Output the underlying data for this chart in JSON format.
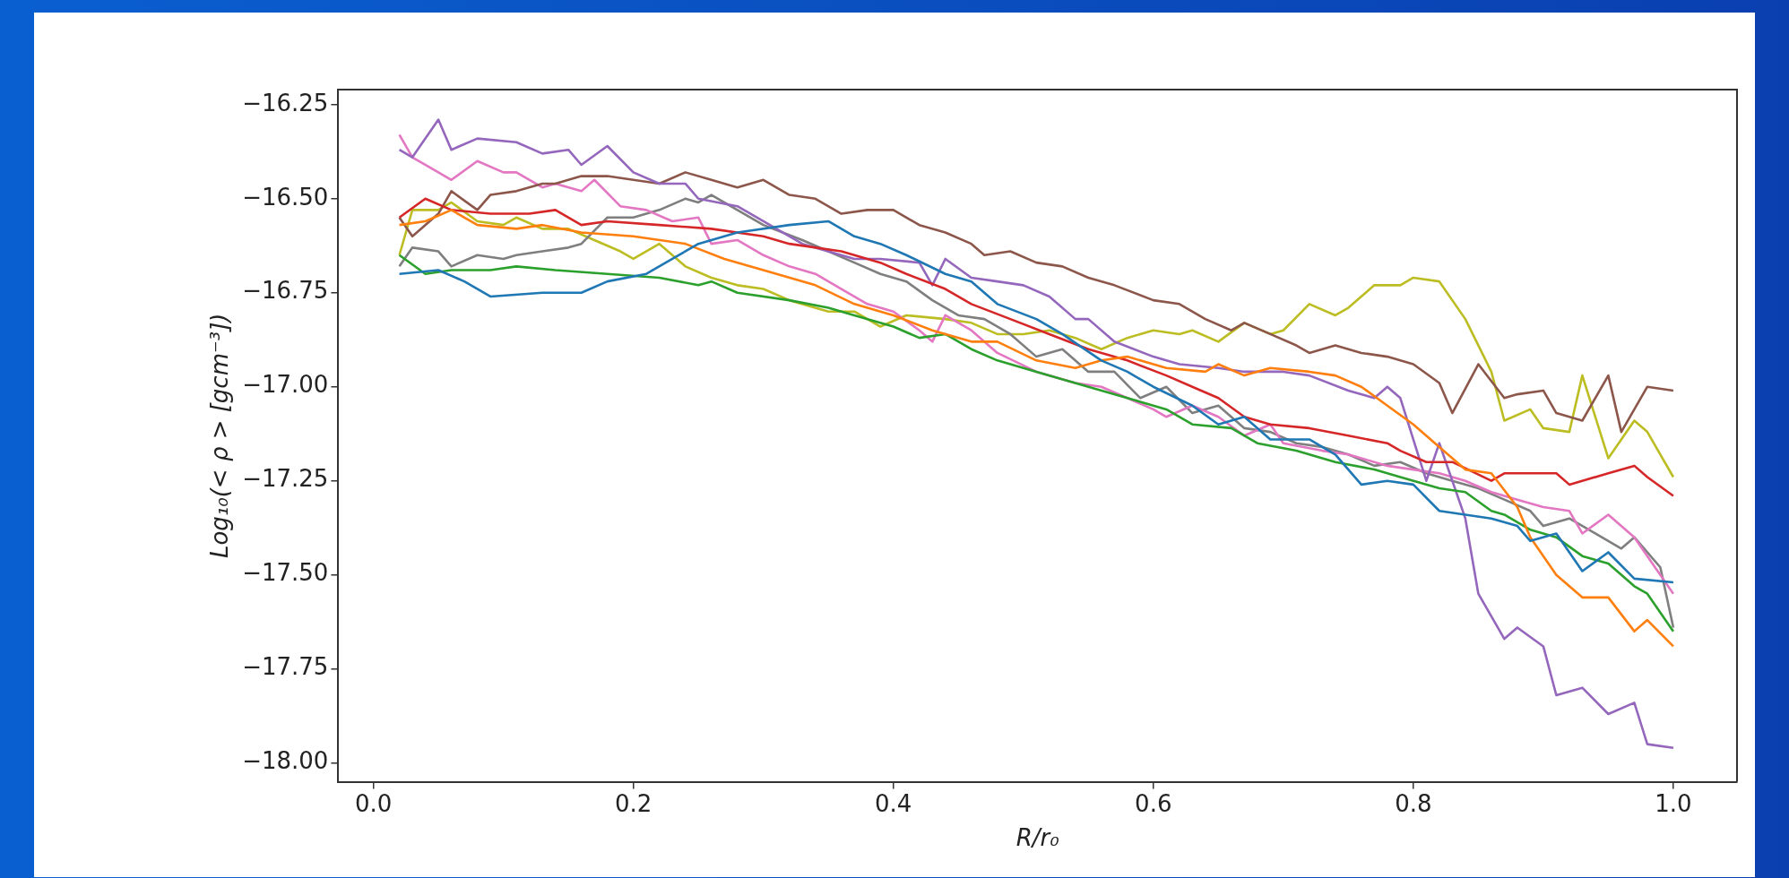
{
  "chart_data": {
    "type": "line",
    "xlabel": "R/r₀",
    "ylabel": "Log₁₀(< ρ > [gcm⁻³])",
    "xlim": [
      -0.027,
      1.049
    ],
    "ylim": [
      -18.05,
      -16.21
    ],
    "xticks": [
      {
        "value": 0,
        "label": "0.0"
      },
      {
        "value": 0.2,
        "label": "0.2"
      },
      {
        "value": 0.4,
        "label": "0.4"
      },
      {
        "value": 0.6,
        "label": "0.6"
      },
      {
        "value": 0.8,
        "label": "0.8"
      },
      {
        "value": 1,
        "label": "1.0"
      }
    ],
    "yticks": [
      {
        "value": -16.25,
        "label": "−16.25"
      },
      {
        "value": -16.5,
        "label": "−16.50"
      },
      {
        "value": -16.75,
        "label": "−16.75"
      },
      {
        "value": -17,
        "label": "−17.00"
      },
      {
        "value": -17.25,
        "label": "−17.25"
      },
      {
        "value": -17.5,
        "label": "−17.50"
      },
      {
        "value": -17.75,
        "label": "−17.75"
      },
      {
        "value": -18,
        "label": "−18.00"
      }
    ],
    "grid": false,
    "legend": false,
    "marker": "none",
    "line_style": "solid",
    "series": [
      {
        "color": "#1f77b4",
        "x": [
          0.02,
          0.05,
          0.07,
          0.09,
          0.13,
          0.16,
          0.18,
          0.21,
          0.23,
          0.25,
          0.28,
          0.32,
          0.35,
          0.37,
          0.39,
          0.41,
          0.44,
          0.46,
          0.48,
          0.51,
          0.53,
          0.56,
          0.58,
          0.6,
          0.63,
          0.65,
          0.67,
          0.69,
          0.72,
          0.74,
          0.76,
          0.78,
          0.8,
          0.82,
          0.84,
          0.86,
          0.88,
          0.89,
          0.91,
          0.93,
          0.95,
          0.97,
          1.0
        ],
        "values": [
          -16.7,
          -16.69,
          -16.72,
          -16.76,
          -16.75,
          -16.75,
          -16.72,
          -16.7,
          -16.66,
          -16.62,
          -16.59,
          -16.57,
          -16.56,
          -16.6,
          -16.62,
          -16.65,
          -16.7,
          -16.72,
          -16.78,
          -16.82,
          -16.86,
          -16.93,
          -16.96,
          -17.0,
          -17.05,
          -17.1,
          -17.08,
          -17.14,
          -17.14,
          -17.18,
          -17.26,
          -17.25,
          -17.26,
          -17.33,
          -17.34,
          -17.35,
          -17.37,
          -17.41,
          -17.39,
          -17.49,
          -17.44,
          -17.51,
          -17.52
        ]
      },
      {
        "color": "#ff7f0e",
        "x": [
          0.02,
          0.04,
          0.06,
          0.08,
          0.11,
          0.13,
          0.16,
          0.2,
          0.24,
          0.27,
          0.3,
          0.34,
          0.37,
          0.4,
          0.43,
          0.46,
          0.48,
          0.51,
          0.54,
          0.56,
          0.58,
          0.61,
          0.64,
          0.65,
          0.67,
          0.69,
          0.72,
          0.74,
          0.76,
          0.78,
          0.8,
          0.82,
          0.84,
          0.86,
          0.88,
          0.89,
          0.91,
          0.93,
          0.95,
          0.97,
          0.98,
          1.0
        ],
        "values": [
          -16.57,
          -16.56,
          -16.53,
          -16.57,
          -16.58,
          -16.57,
          -16.59,
          -16.6,
          -16.62,
          -16.66,
          -16.69,
          -16.73,
          -16.78,
          -16.81,
          -16.85,
          -16.88,
          -16.88,
          -16.93,
          -16.95,
          -16.93,
          -16.92,
          -16.95,
          -16.96,
          -16.94,
          -16.97,
          -16.95,
          -16.96,
          -16.97,
          -17.0,
          -17.05,
          -17.1,
          -17.16,
          -17.22,
          -17.23,
          -17.32,
          -17.4,
          -17.5,
          -17.56,
          -17.56,
          -17.65,
          -17.62,
          -17.69
        ]
      },
      {
        "color": "#2ca02c",
        "x": [
          0.02,
          0.04,
          0.06,
          0.09,
          0.11,
          0.14,
          0.18,
          0.22,
          0.25,
          0.26,
          0.28,
          0.32,
          0.35,
          0.37,
          0.4,
          0.42,
          0.44,
          0.46,
          0.48,
          0.51,
          0.55,
          0.58,
          0.61,
          0.63,
          0.66,
          0.68,
          0.71,
          0.74,
          0.77,
          0.79,
          0.82,
          0.84,
          0.86,
          0.87,
          0.89,
          0.91,
          0.93,
          0.95,
          0.97,
          0.98,
          1.0
        ],
        "values": [
          -16.65,
          -16.7,
          -16.69,
          -16.69,
          -16.68,
          -16.69,
          -16.7,
          -16.71,
          -16.73,
          -16.72,
          -16.75,
          -16.77,
          -16.79,
          -16.81,
          -16.84,
          -16.87,
          -16.86,
          -16.9,
          -16.93,
          -16.96,
          -17.0,
          -17.03,
          -17.06,
          -17.1,
          -17.11,
          -17.15,
          -17.17,
          -17.2,
          -17.22,
          -17.24,
          -17.27,
          -17.28,
          -17.33,
          -17.34,
          -17.38,
          -17.4,
          -17.45,
          -17.47,
          -17.53,
          -17.55,
          -17.65
        ]
      },
      {
        "color": "#d62728",
        "x": [
          0.02,
          0.04,
          0.06,
          0.09,
          0.12,
          0.14,
          0.16,
          0.18,
          0.22,
          0.26,
          0.3,
          0.32,
          0.36,
          0.39,
          0.41,
          0.44,
          0.46,
          0.49,
          0.52,
          0.55,
          0.58,
          0.61,
          0.63,
          0.65,
          0.67,
          0.69,
          0.72,
          0.75,
          0.78,
          0.79,
          0.81,
          0.83,
          0.86,
          0.87,
          0.91,
          0.92,
          0.95,
          0.97,
          0.98,
          1.0
        ],
        "values": [
          -16.55,
          -16.5,
          -16.53,
          -16.54,
          -16.54,
          -16.53,
          -16.57,
          -16.56,
          -16.57,
          -16.58,
          -16.6,
          -16.62,
          -16.64,
          -16.67,
          -16.7,
          -16.74,
          -16.78,
          -16.82,
          -16.86,
          -16.9,
          -16.93,
          -16.97,
          -17.0,
          -17.03,
          -17.08,
          -17.1,
          -17.11,
          -17.13,
          -17.15,
          -17.17,
          -17.2,
          -17.2,
          -17.25,
          -17.23,
          -17.23,
          -17.26,
          -17.23,
          -17.21,
          -17.24,
          -17.29
        ]
      },
      {
        "color": "#9467bd",
        "x": [
          0.02,
          0.03,
          0.05,
          0.06,
          0.08,
          0.11,
          0.13,
          0.15,
          0.16,
          0.18,
          0.2,
          0.22,
          0.24,
          0.25,
          0.28,
          0.3,
          0.33,
          0.37,
          0.39,
          0.42,
          0.43,
          0.44,
          0.46,
          0.48,
          0.5,
          0.52,
          0.54,
          0.55,
          0.57,
          0.6,
          0.62,
          0.65,
          0.67,
          0.7,
          0.72,
          0.75,
          0.77,
          0.78,
          0.79,
          0.81,
          0.82,
          0.84,
          0.85,
          0.87,
          0.88,
          0.9,
          0.91,
          0.93,
          0.95,
          0.97,
          0.98,
          1.0
        ],
        "values": [
          -16.37,
          -16.39,
          -16.29,
          -16.37,
          -16.34,
          -16.35,
          -16.38,
          -16.37,
          -16.41,
          -16.36,
          -16.43,
          -16.46,
          -16.46,
          -16.5,
          -16.52,
          -16.56,
          -16.62,
          -16.66,
          -16.66,
          -16.67,
          -16.73,
          -16.66,
          -16.71,
          -16.72,
          -16.73,
          -16.76,
          -16.82,
          -16.82,
          -16.88,
          -16.92,
          -16.94,
          -16.95,
          -16.96,
          -16.96,
          -16.97,
          -17.01,
          -17.03,
          -17.0,
          -17.03,
          -17.25,
          -17.15,
          -17.35,
          -17.55,
          -17.67,
          -17.64,
          -17.69,
          -17.82,
          -17.8,
          -17.87,
          -17.84,
          -17.95,
          -17.96
        ]
      },
      {
        "color": "#8c564b",
        "x": [
          0.02,
          0.03,
          0.05,
          0.06,
          0.08,
          0.09,
          0.11,
          0.13,
          0.14,
          0.16,
          0.18,
          0.2,
          0.22,
          0.24,
          0.26,
          0.28,
          0.3,
          0.32,
          0.34,
          0.36,
          0.38,
          0.4,
          0.42,
          0.44,
          0.46,
          0.47,
          0.49,
          0.51,
          0.53,
          0.55,
          0.57,
          0.6,
          0.62,
          0.64,
          0.66,
          0.67,
          0.69,
          0.71,
          0.72,
          0.74,
          0.76,
          0.78,
          0.8,
          0.82,
          0.83,
          0.85,
          0.87,
          0.88,
          0.9,
          0.91,
          0.93,
          0.95,
          0.96,
          0.98,
          1.0
        ],
        "values": [
          -16.55,
          -16.6,
          -16.54,
          -16.48,
          -16.53,
          -16.49,
          -16.48,
          -16.46,
          -16.46,
          -16.44,
          -16.44,
          -16.45,
          -16.46,
          -16.43,
          -16.45,
          -16.47,
          -16.45,
          -16.49,
          -16.5,
          -16.54,
          -16.53,
          -16.53,
          -16.57,
          -16.59,
          -16.62,
          -16.65,
          -16.64,
          -16.67,
          -16.68,
          -16.71,
          -16.73,
          -16.77,
          -16.78,
          -16.82,
          -16.85,
          -16.83,
          -16.86,
          -16.89,
          -16.91,
          -16.89,
          -16.91,
          -16.92,
          -16.94,
          -16.99,
          -17.07,
          -16.94,
          -17.03,
          -17.02,
          -17.01,
          -17.07,
          -17.09,
          -16.97,
          -17.12,
          -17.0,
          -17.01
        ]
      },
      {
        "color": "#e377c2",
        "x": [
          0.02,
          0.03,
          0.05,
          0.06,
          0.08,
          0.1,
          0.11,
          0.13,
          0.14,
          0.16,
          0.17,
          0.19,
          0.21,
          0.23,
          0.25,
          0.26,
          0.28,
          0.3,
          0.32,
          0.34,
          0.36,
          0.38,
          0.4,
          0.42,
          0.43,
          0.44,
          0.46,
          0.48,
          0.51,
          0.54,
          0.56,
          0.58,
          0.6,
          0.61,
          0.63,
          0.65,
          0.67,
          0.69,
          0.7,
          0.73,
          0.75,
          0.78,
          0.8,
          0.82,
          0.84,
          0.86,
          0.88,
          0.9,
          0.92,
          0.93,
          0.95,
          0.97,
          1.0
        ],
        "values": [
          -16.33,
          -16.39,
          -16.43,
          -16.45,
          -16.4,
          -16.43,
          -16.43,
          -16.47,
          -16.46,
          -16.48,
          -16.45,
          -16.52,
          -16.53,
          -16.56,
          -16.55,
          -16.62,
          -16.61,
          -16.65,
          -16.68,
          -16.7,
          -16.74,
          -16.78,
          -16.8,
          -16.85,
          -16.88,
          -16.81,
          -16.85,
          -16.91,
          -16.96,
          -16.99,
          -17.0,
          -17.03,
          -17.06,
          -17.08,
          -17.05,
          -17.08,
          -17.13,
          -17.1,
          -17.15,
          -17.17,
          -17.18,
          -17.21,
          -17.22,
          -17.23,
          -17.25,
          -17.28,
          -17.3,
          -17.32,
          -17.33,
          -17.39,
          -17.34,
          -17.4,
          -17.55
        ]
      },
      {
        "color": "#7f7f7f",
        "x": [
          0.02,
          0.03,
          0.05,
          0.06,
          0.08,
          0.1,
          0.11,
          0.13,
          0.15,
          0.16,
          0.18,
          0.2,
          0.22,
          0.24,
          0.25,
          0.26,
          0.28,
          0.3,
          0.33,
          0.35,
          0.37,
          0.39,
          0.41,
          0.43,
          0.45,
          0.47,
          0.49,
          0.51,
          0.53,
          0.55,
          0.57,
          0.59,
          0.61,
          0.63,
          0.65,
          0.67,
          0.69,
          0.71,
          0.73,
          0.75,
          0.77,
          0.79,
          0.81,
          0.83,
          0.85,
          0.87,
          0.89,
          0.9,
          0.92,
          0.94,
          0.96,
          0.97,
          0.99,
          1.0
        ],
        "values": [
          -16.68,
          -16.63,
          -16.64,
          -16.68,
          -16.65,
          -16.66,
          -16.65,
          -16.64,
          -16.63,
          -16.62,
          -16.55,
          -16.55,
          -16.53,
          -16.5,
          -16.51,
          -16.49,
          -16.53,
          -16.57,
          -16.61,
          -16.64,
          -16.67,
          -16.7,
          -16.72,
          -16.77,
          -16.81,
          -16.82,
          -16.86,
          -16.92,
          -16.9,
          -16.96,
          -16.96,
          -17.03,
          -17.0,
          -17.07,
          -17.05,
          -17.11,
          -17.12,
          -17.15,
          -17.16,
          -17.18,
          -17.21,
          -17.2,
          -17.23,
          -17.25,
          -17.27,
          -17.3,
          -17.33,
          -17.37,
          -17.35,
          -17.39,
          -17.43,
          -17.4,
          -17.48,
          -17.64
        ]
      },
      {
        "color": "#bcbd22",
        "x": [
          0.02,
          0.03,
          0.05,
          0.06,
          0.08,
          0.1,
          0.11,
          0.13,
          0.15,
          0.17,
          0.19,
          0.2,
          0.22,
          0.24,
          0.26,
          0.28,
          0.3,
          0.32,
          0.35,
          0.37,
          0.39,
          0.41,
          0.44,
          0.46,
          0.48,
          0.5,
          0.52,
          0.54,
          0.56,
          0.58,
          0.6,
          0.62,
          0.63,
          0.65,
          0.67,
          0.69,
          0.7,
          0.72,
          0.74,
          0.75,
          0.77,
          0.79,
          0.8,
          0.82,
          0.84,
          0.86,
          0.87,
          0.89,
          0.9,
          0.92,
          0.93,
          0.95,
          0.97,
          0.98,
          1.0
        ],
        "values": [
          -16.65,
          -16.53,
          -16.53,
          -16.51,
          -16.56,
          -16.57,
          -16.55,
          -16.58,
          -16.58,
          -16.61,
          -16.64,
          -16.66,
          -16.62,
          -16.68,
          -16.71,
          -16.73,
          -16.74,
          -16.77,
          -16.8,
          -16.8,
          -16.84,
          -16.81,
          -16.82,
          -16.83,
          -16.86,
          -16.86,
          -16.85,
          -16.87,
          -16.9,
          -16.87,
          -16.85,
          -16.86,
          -16.85,
          -16.88,
          -16.83,
          -16.86,
          -16.85,
          -16.78,
          -16.81,
          -16.79,
          -16.73,
          -16.73,
          -16.71,
          -16.72,
          -16.82,
          -16.96,
          -17.09,
          -17.06,
          -17.11,
          -17.12,
          -16.97,
          -17.19,
          -17.09,
          -17.12,
          -17.24
        ]
      }
    ]
  }
}
